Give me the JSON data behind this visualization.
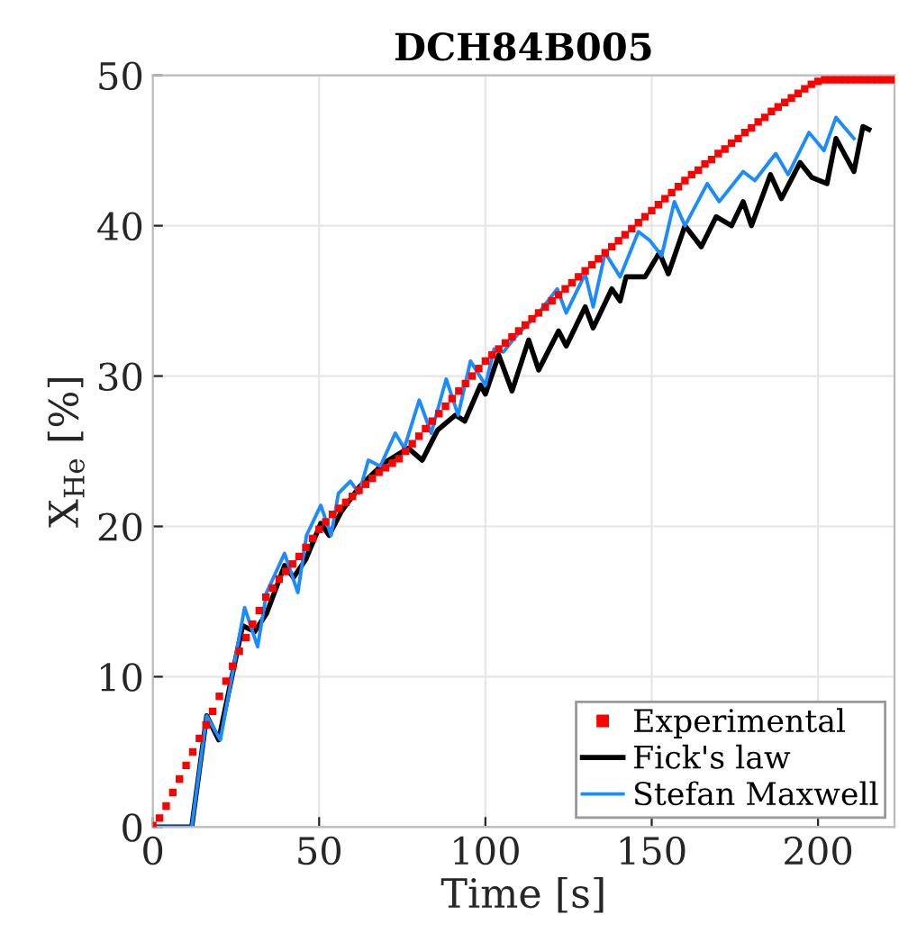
{
  "chart_data": {
    "type": "line",
    "title": "DCH84B005",
    "xlabel": "Time [s]",
    "ylabel": "X$_{He}$ [%]",
    "xlim": [
      0,
      223
    ],
    "ylim": [
      0,
      50
    ],
    "xticks": [
      0,
      50,
      100,
      150,
      200
    ],
    "yticks": [
      0,
      10,
      20,
      30,
      40,
      50
    ],
    "grid": true,
    "legend": "bottom right",
    "series": [
      {
        "name": "Experimental",
        "type": "scatter",
        "marker": "square",
        "color": "#ff0000",
        "x": [
          0,
          2,
          4,
          6,
          8,
          10,
          12,
          14,
          16,
          18,
          20,
          22,
          24,
          26,
          28,
          30,
          32,
          34,
          36,
          38,
          40,
          42,
          44,
          46,
          48,
          50,
          52,
          54,
          56,
          58,
          60,
          62,
          64,
          66,
          68,
          70,
          72,
          74,
          76,
          78,
          80,
          82,
          84,
          86,
          88,
          90,
          92,
          94,
          96,
          98,
          100,
          102,
          104,
          106,
          108,
          110,
          112,
          114,
          116,
          118,
          120,
          122,
          124,
          126,
          128,
          130,
          132,
          134,
          136,
          138,
          140,
          142,
          144,
          146,
          148,
          150,
          152,
          154,
          156,
          158,
          160,
          162,
          164,
          166,
          168,
          170,
          172,
          174,
          176,
          178,
          180,
          182,
          184,
          186,
          188,
          190,
          192,
          194,
          196,
          198,
          200,
          202,
          204,
          206,
          208,
          210,
          212,
          214,
          216,
          218,
          220,
          222
        ],
        "values": [
          0.1,
          0.6,
          1.4,
          2.3,
          3.2,
          4.1,
          5.0,
          5.9,
          6.8,
          7.7,
          8.7,
          9.7,
          10.7,
          11.7,
          12.6,
          13.5,
          14.4,
          15.3,
          15.9,
          16.5,
          17.0,
          17.5,
          18.0,
          18.6,
          19.2,
          19.8,
          20.3,
          20.8,
          21.2,
          21.6,
          22.0,
          22.4,
          22.8,
          23.2,
          23.6,
          23.9,
          24.2,
          24.5,
          25.0,
          25.5,
          26.0,
          26.5,
          27.0,
          27.5,
          28.0,
          28.5,
          29.0,
          29.5,
          30.0,
          30.5,
          31.0,
          31.4,
          31.8,
          32.2,
          32.6,
          33.0,
          33.4,
          33.8,
          34.2,
          34.6,
          35.0,
          35.4,
          35.8,
          36.2,
          36.6,
          37.0,
          37.4,
          37.8,
          38.2,
          38.6,
          39.0,
          39.4,
          39.8,
          40.2,
          40.6,
          41.0,
          41.4,
          41.8,
          42.2,
          42.6,
          43.0,
          43.4,
          43.7,
          44.1,
          44.4,
          44.8,
          45.1,
          45.5,
          45.8,
          46.2,
          46.5,
          46.9,
          47.2,
          47.6,
          47.9,
          48.2,
          48.5,
          48.8,
          49.1,
          49.4,
          49.6,
          49.7,
          49.7,
          49.7,
          49.7,
          49.7,
          49.7,
          49.7,
          49.7,
          49.7,
          49.7,
          49.7
        ]
      },
      {
        "name": "Fick's law",
        "color": "#000000",
        "x": [
          0,
          11.7,
          16.2,
          19.8,
          27,
          30.6,
          34.2,
          39.6,
          42.3,
          46,
          50.5,
          53,
          56.7,
          62,
          69.4,
          76.8,
          81,
          85.6,
          91,
          93.8,
          98.5,
          100,
          104,
          108,
          113,
          116,
          122,
          124.3,
          130,
          132.4,
          138,
          140.5,
          142.3,
          148,
          152.3,
          155,
          160,
          164.9,
          169.4,
          174,
          177.5,
          180,
          185.7,
          189,
          194.6,
          198.2,
          202.7,
          205.4,
          210.8,
          213.5,
          215.3
        ],
        "values": [
          0,
          0,
          7.4,
          5.8,
          13.4,
          13.0,
          14.2,
          17.4,
          16.6,
          17.8,
          20.2,
          19.4,
          21,
          22.6,
          24.2,
          25.2,
          24.4,
          26.4,
          27.4,
          27,
          29.4,
          28.8,
          31.4,
          29,
          32.4,
          30.4,
          33,
          32,
          34.6,
          33.2,
          35.8,
          35,
          36.6,
          36.6,
          38.2,
          36.8,
          40,
          38.6,
          40.6,
          40,
          41.6,
          40,
          43.4,
          41.8,
          44.2,
          43.2,
          42.8,
          45.8,
          43.6,
          46.6,
          46.4
        ]
      },
      {
        "name": "Stefan Maxwell",
        "color": "#1a8cff",
        "x": [
          0,
          11.7,
          16.2,
          20.3,
          27.6,
          31.5,
          34.2,
          39.6,
          43.6,
          46.2,
          50.5,
          53.6,
          55.8,
          59.4,
          62,
          64.8,
          68.4,
          72.9,
          75.6,
          80.1,
          83.7,
          88.2,
          91.8,
          95.5,
          100,
          102.6,
          105.4,
          109,
          116,
          121.6,
          124.3,
          130,
          132.4,
          136,
          140.5,
          146,
          149.5,
          153,
          156.8,
          160,
          166.7,
          170.3,
          177.5,
          181,
          187.3,
          191,
          197.3,
          201.8,
          205.4,
          210.8
        ],
        "values": [
          0,
          0,
          7.4,
          5.8,
          14.6,
          12,
          15.6,
          18.2,
          15.6,
          19.4,
          21.4,
          19.4,
          22.2,
          23,
          22.2,
          24.4,
          24,
          26.2,
          25.2,
          28.4,
          26.2,
          29.8,
          27.4,
          31,
          29.4,
          31.8,
          31.6,
          32.6,
          34.2,
          35.8,
          34.2,
          36.8,
          34.6,
          38.2,
          36.6,
          39.6,
          39,
          38,
          41.6,
          40,
          42.8,
          41.6,
          43.6,
          43,
          44.8,
          43.4,
          46.2,
          45,
          47.2,
          45.8
        ]
      }
    ]
  }
}
